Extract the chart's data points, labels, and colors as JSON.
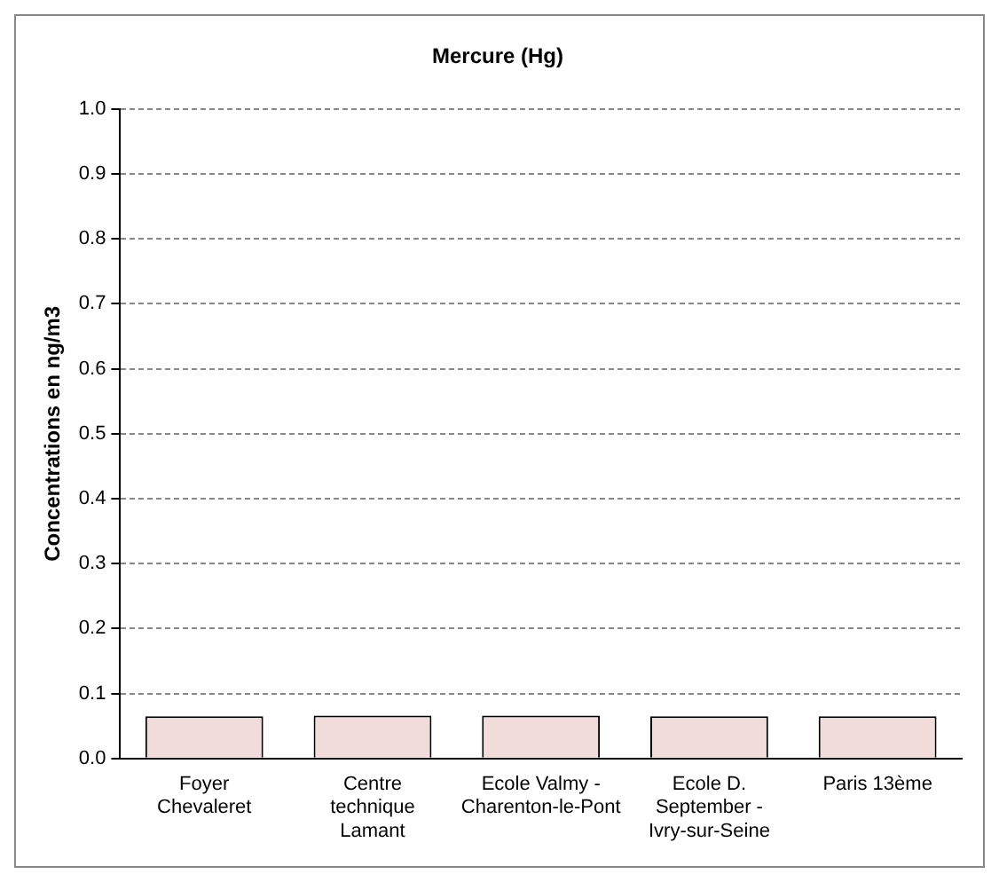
{
  "chart_data": {
    "type": "bar",
    "title": "Mercure (Hg)",
    "ylabel": "Concentrations en ng/m3",
    "categories": [
      "Foyer Chevaleret",
      "Centre technique Lamant",
      "Ecole Valmy - Charenton-le-Pont",
      "Ecole D. September - Ivry-sur-Seine",
      "Paris 13ème"
    ],
    "values": [
      0.065,
      0.066,
      0.066,
      0.065,
      0.065
    ],
    "color": "#f2dcdb",
    "ylim": [
      0,
      1
    ],
    "yticks": [
      {
        "value": 0,
        "label": "0.0"
      },
      {
        "value": 0.1,
        "label": "0.1"
      },
      {
        "value": 0.2,
        "label": "0.2"
      },
      {
        "value": 0.3,
        "label": "0.3"
      },
      {
        "value": 0.4,
        "label": "0.4"
      },
      {
        "value": 0.5,
        "label": "0.5"
      },
      {
        "value": 0.6,
        "label": "0.6"
      },
      {
        "value": 0.7,
        "label": "0.7"
      },
      {
        "value": 0.8,
        "label": "0.8"
      },
      {
        "value": 0.9,
        "label": "0.9"
      },
      {
        "value": 1,
        "label": "1.0"
      }
    ],
    "grid": "y",
    "legend": false
  }
}
